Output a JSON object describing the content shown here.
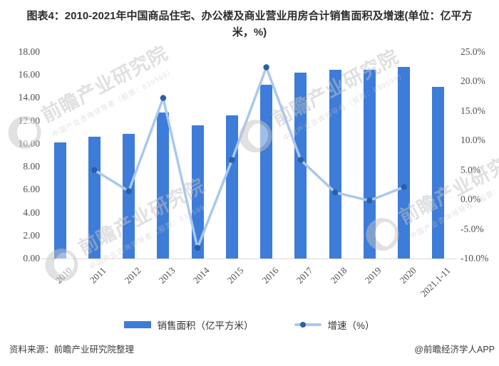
{
  "title": "图表4：2010-2021年中国商品住宅、办公楼及商业营业用房合计销售面积及增速(单位：亿平方米，%)",
  "watermark": {
    "brand": "前瞻产业研究院",
    "tagline": "中国产业咨询领导者（股票：839599）"
  },
  "footer": {
    "source": "资料来源：前瞻产业研究院整理",
    "credit": "@前瞻经济学人APP"
  },
  "colors": {
    "bar": "#3D7CD8",
    "line": "#A9C8F0",
    "marker": "#2B5EA8",
    "axis_text": "#4F4F4F",
    "axis_line": "#D9D9D9",
    "title_text": "#2D2D2D"
  },
  "chart_data": {
    "type": "bar",
    "subtype": "bar+line combo",
    "categories": [
      "2010",
      "2011",
      "2012",
      "2013",
      "2014",
      "2015",
      "2016",
      "2017",
      "2018",
      "2019",
      "2020",
      "2021.1-11"
    ],
    "series": [
      {
        "name": "销售面积（亿平方米）",
        "type": "bar",
        "axis": "left",
        "values": [
          10.1,
          10.6,
          10.85,
          12.7,
          11.62,
          12.46,
          15.16,
          16.22,
          16.42,
          16.42,
          16.7,
          14.98
        ]
      },
      {
        "name": "增速（%）",
        "type": "line",
        "axis": "right",
        "values": [
          null,
          5.0,
          1.4,
          17.2,
          -8.2,
          6.7,
          22.4,
          6.7,
          1.2,
          -0.2,
          2.1,
          null
        ]
      }
    ],
    "left_axis": {
      "min": 0,
      "max": 18,
      "ticks": [
        "18.00",
        "16.00",
        "14.00",
        "12.00",
        "10.00",
        "8.00",
        "6.00",
        "4.00",
        "2.00",
        "0.00"
      ]
    },
    "right_axis": {
      "min": -10,
      "max": 25,
      "ticks": [
        "25.0%",
        "20.0%",
        "15.0%",
        "10.0%",
        "5.0%",
        "0.0%",
        "-5.0%",
        "-10.0%"
      ]
    },
    "grid": false,
    "legend_position": "bottom"
  }
}
